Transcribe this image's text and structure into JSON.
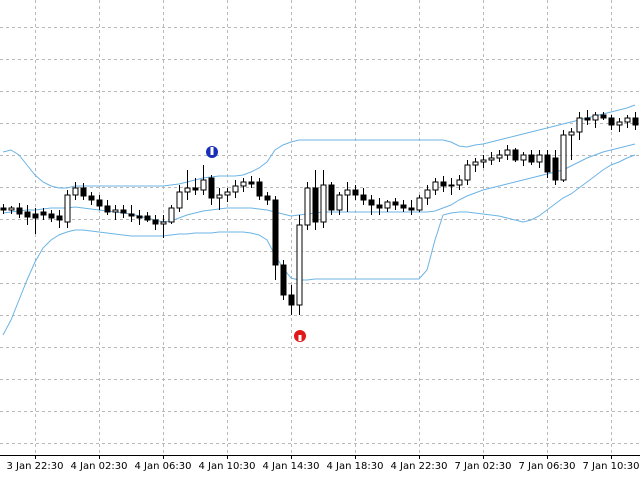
{
  "chart_data": {
    "type": "candlestick",
    "categories": [
      null,
      null,
      null,
      null,
      "3 Jan 22:30",
      null,
      null,
      null,
      null,
      null,
      null,
      null,
      "4 Jan 02:30",
      null,
      null,
      null,
      null,
      null,
      null,
      null,
      "4 Jan 06:30",
      null,
      null,
      null,
      null,
      null,
      null,
      null,
      "4 Jan 10:30",
      null,
      null,
      null,
      null,
      null,
      null,
      null,
      "4 Jan 14:30",
      null,
      null,
      null,
      null,
      null,
      null,
      null,
      "4 Jan 18:30",
      null,
      null,
      null,
      null,
      null,
      null,
      null,
      "4 Jan 22:30",
      null,
      null,
      null,
      null,
      null,
      null,
      null,
      "7 Jan 02:30",
      null,
      null,
      null,
      null,
      null,
      null,
      null,
      "7 Jan 06:30",
      null,
      null,
      null,
      null,
      null,
      null,
      null,
      "7 Jan 10:30",
      null,
      null,
      null
    ],
    "open": [
      292,
      290,
      292,
      288,
      286,
      288,
      286,
      284,
      278,
      305,
      312,
      304,
      300,
      294,
      288,
      290,
      286,
      284,
      284,
      280,
      276,
      278,
      292,
      308,
      312,
      310,
      322,
      302,
      305,
      308,
      314,
      318,
      318,
      304,
      300,
      235,
      205,
      195,
      275,
      312,
      278,
      315,
      290,
      305,
      310,
      305,
      300,
      295,
      292,
      298,
      295,
      292,
      290,
      302,
      310,
      318,
      314,
      315,
      320,
      335,
      338,
      340,
      342,
      345,
      350,
      340,
      345,
      338,
      345,
      342,
      320,
      365,
      368,
      382,
      380,
      385,
      382,
      375,
      378,
      382
    ],
    "high": [
      296,
      294,
      297,
      295,
      292,
      292,
      290,
      290,
      310,
      318,
      317,
      308,
      305,
      300,
      295,
      295,
      295,
      290,
      288,
      285,
      285,
      295,
      315,
      330,
      322,
      335,
      325,
      312,
      312,
      320,
      322,
      324,
      322,
      308,
      304,
      240,
      215,
      285,
      318,
      330,
      330,
      318,
      308,
      318,
      315,
      312,
      305,
      302,
      300,
      302,
      300,
      300,
      305,
      315,
      322,
      324,
      322,
      325,
      340,
      342,
      345,
      348,
      350,
      355,
      352,
      348,
      350,
      350,
      350,
      350,
      370,
      372,
      388,
      390,
      388,
      388,
      385,
      382,
      385,
      388
    ],
    "low": [
      286,
      286,
      282,
      275,
      266,
      280,
      278,
      272,
      272,
      300,
      300,
      295,
      290,
      285,
      280,
      282,
      278,
      275,
      278,
      270,
      262,
      276,
      288,
      300,
      305,
      305,
      295,
      290,
      298,
      302,
      308,
      312,
      300,
      295,
      220,
      200,
      185,
      185,
      270,
      270,
      272,
      285,
      285,
      288,
      300,
      295,
      285,
      285,
      288,
      290,
      288,
      285,
      288,
      295,
      305,
      308,
      305,
      310,
      315,
      328,
      332,
      335,
      338,
      340,
      338,
      334,
      335,
      332,
      322,
      315,
      318,
      340,
      360,
      375,
      372,
      380,
      370,
      368,
      372,
      370
    ],
    "close": [
      290,
      292,
      286,
      283,
      282,
      285,
      282,
      280,
      305,
      312,
      304,
      300,
      294,
      288,
      290,
      287,
      284,
      282,
      280,
      276,
      278,
      292,
      308,
      312,
      310,
      320,
      302,
      305,
      308,
      314,
      318,
      316,
      304,
      300,
      235,
      205,
      195,
      275,
      312,
      278,
      315,
      290,
      305,
      310,
      305,
      300,
      295,
      292,
      298,
      295,
      292,
      290,
      302,
      310,
      318,
      314,
      315,
      320,
      335,
      338,
      340,
      342,
      345,
      350,
      340,
      345,
      338,
      345,
      328,
      320,
      365,
      368,
      382,
      380,
      385,
      382,
      375,
      378,
      382,
      375
    ],
    "bands": {
      "color": "#6cb4e4",
      "upper": [
        348,
        350,
        345,
        335,
        325,
        318,
        314,
        312,
        312,
        314,
        314,
        314,
        314,
        314,
        314,
        314,
        314,
        314,
        314,
        314,
        314,
        315,
        316,
        318,
        320,
        322,
        323,
        324,
        324,
        324,
        325,
        328,
        332,
        338,
        350,
        355,
        358,
        360,
        360,
        360,
        360,
        360,
        360,
        360,
        360,
        360,
        360,
        360,
        360,
        360,
        360,
        360,
        360,
        360,
        360,
        360,
        358,
        354,
        353,
        355,
        356,
        358,
        360,
        362,
        364,
        366,
        368,
        370,
        372,
        374,
        376,
        378,
        380,
        382,
        384,
        386,
        388,
        390,
        392,
        395
      ],
      "middle": [
        287,
        288,
        289,
        290,
        290,
        291,
        292,
        292,
        292,
        293,
        292,
        291,
        290,
        289,
        288,
        287,
        286,
        284,
        282,
        280,
        278,
        279,
        282,
        285,
        287,
        289,
        290,
        291,
        292,
        292,
        292,
        292,
        291,
        290,
        288,
        286,
        284,
        285,
        286,
        287,
        288,
        288,
        288,
        288,
        288,
        288,
        288,
        288,
        288,
        288,
        288,
        288,
        288,
        288,
        289,
        292,
        295,
        300,
        304,
        307,
        310,
        312,
        314,
        316,
        318,
        320,
        322,
        324,
        326,
        328,
        330,
        334,
        338,
        342,
        345,
        348,
        350,
        352,
        354,
        356
      ],
      "lower": [
        165,
        180,
        200,
        220,
        238,
        252,
        260,
        265,
        268,
        270,
        270,
        269,
        268,
        267,
        266,
        265,
        264,
        264,
        264,
        264,
        264,
        265,
        266,
        266,
        267,
        267,
        267,
        268,
        268,
        268,
        268,
        267,
        265,
        260,
        245,
        232,
        222,
        220,
        220,
        221,
        221,
        221,
        221,
        221,
        221,
        221,
        221,
        221,
        221,
        221,
        221,
        221,
        221,
        230,
        260,
        285,
        287,
        288,
        288,
        287,
        286,
        285,
        284,
        282,
        280,
        278,
        280,
        284,
        290,
        296,
        302,
        306,
        312,
        318,
        324,
        330,
        335,
        338,
        342,
        345
      ]
    },
    "up_color": "#ffffff",
    "down_color": "#000000",
    "ylim": [
      45,
      500
    ],
    "grid": true
  }
}
